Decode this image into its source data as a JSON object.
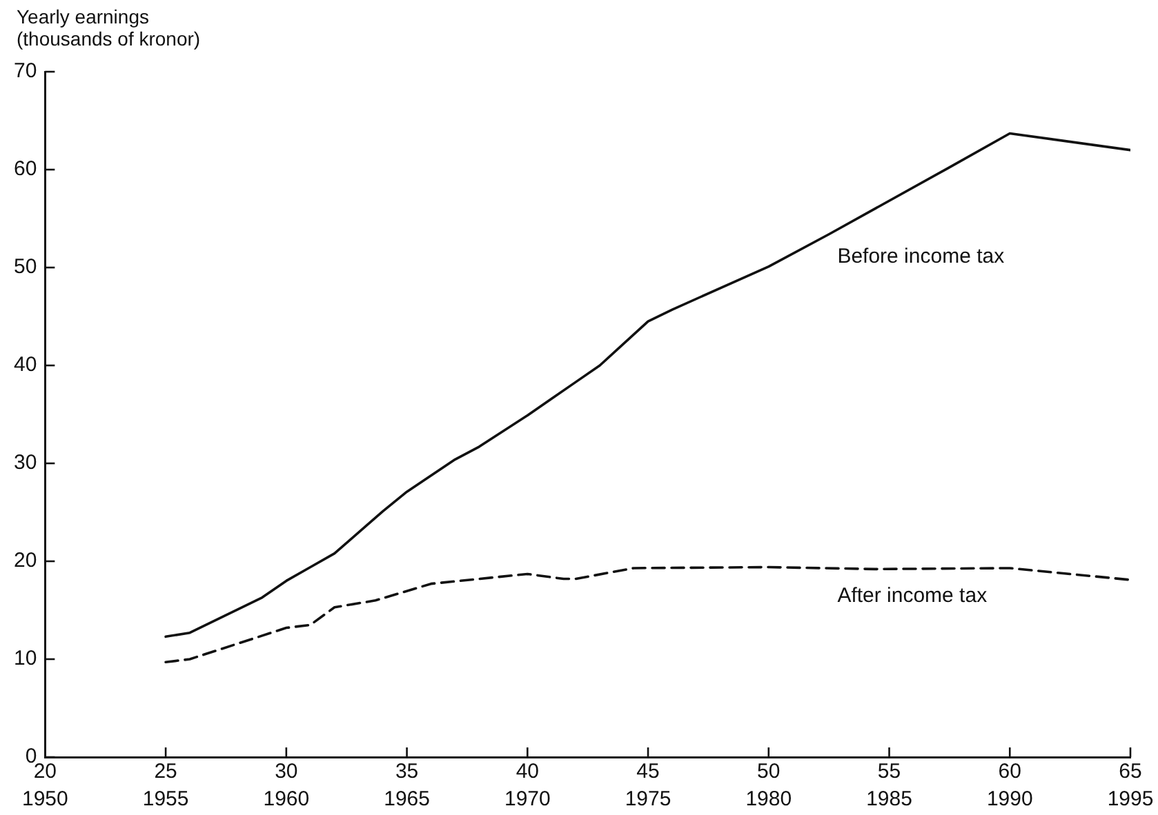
{
  "chart_data": {
    "type": "line",
    "ylabel": "Yearly earnings (thousands of kronor)",
    "xlim": [
      20,
      65
    ],
    "xticks": [
      20,
      25,
      30,
      35,
      40,
      45,
      50,
      55,
      60,
      65
    ],
    "x2lim": [
      1950,
      1995
    ],
    "x2ticks": [
      1950,
      1955,
      1960,
      1965,
      1970,
      1975,
      1980,
      1985,
      1990,
      1995
    ],
    "ylim": [
      0,
      70
    ],
    "yticks": [
      0,
      10,
      20,
      30,
      40,
      50,
      60,
      70
    ],
    "grid": false,
    "legend": false,
    "marker": "none",
    "series": [
      {
        "name": "Before income tax",
        "color": "#111111",
        "line_style": "solid",
        "x": [
          25,
          26,
          29,
          30,
          31,
          32,
          34,
          35,
          37,
          38,
          40,
          41,
          42,
          43,
          45,
          46,
          50,
          52.5,
          57.4,
          60,
          65
        ],
        "values": [
          12.3,
          12.7,
          16.3,
          18.0,
          19.4,
          20.8,
          25.1,
          27.1,
          30.4,
          31.7,
          34.9,
          36.6,
          38.3,
          40.0,
          44.5,
          45.7,
          50.1,
          53.4,
          60.1,
          63.7,
          62.0
        ]
      },
      {
        "name": "After income tax",
        "color": "#111111",
        "line_style": "dashed",
        "x": [
          25,
          26,
          30,
          31,
          32,
          33.7,
          36,
          40,
          41.5,
          42,
          44.4,
          50,
          54.4,
          60,
          65
        ],
        "values": [
          9.7,
          10.0,
          13.2,
          13.5,
          15.3,
          16.0,
          17.7,
          18.7,
          18.2,
          18.2,
          19.3,
          19.4,
          19.2,
          19.3,
          18.1
        ]
      }
    ]
  }
}
